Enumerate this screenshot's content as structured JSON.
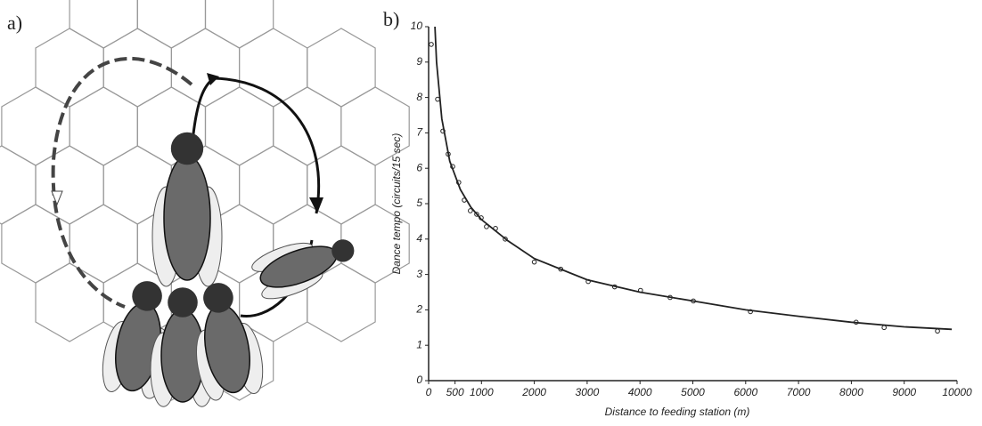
{
  "panel_labels": [
    "a)",
    "b)"
  ],
  "chart_data": {
    "type": "scatter",
    "xlabel": "Distance to feeding station (m)",
    "ylabel": "Dance tempo (circuits/15 sec)",
    "xlim": [
      0,
      10000
    ],
    "ylim": [
      0,
      10
    ],
    "xticks": [
      0,
      500,
      1000,
      2000,
      3000,
      4000,
      5000,
      6000,
      7000,
      8000,
      9000,
      10000
    ],
    "yticks": [
      0,
      1,
      2,
      3,
      4,
      5,
      6,
      7,
      8,
      9,
      10
    ],
    "color": "#222222",
    "series": [
      {
        "kind": "points",
        "x": [
          50,
          170,
          270,
          370,
          455,
          570,
          675,
          790,
          910,
          995,
          1095,
          1265,
          1450,
          2000,
          2500,
          3020,
          3520,
          4010,
          4570,
          5010,
          6090,
          8090,
          8620,
          9630
        ],
        "values": [
          9.5,
          7.95,
          7.05,
          6.4,
          6.05,
          5.6,
          5.1,
          4.8,
          4.7,
          4.6,
          4.35,
          4.3,
          4.0,
          3.35,
          3.15,
          2.8,
          2.65,
          2.55,
          2.35,
          2.25,
          1.95,
          1.65,
          1.5,
          1.4
        ]
      },
      {
        "kind": "curve",
        "x": [
          120,
          150,
          250,
          400,
          600,
          800,
          1000,
          1500,
          2000,
          3000,
          4000,
          5000,
          6000,
          7000,
          8000,
          9000,
          9900
        ],
        "values": [
          10,
          9.0,
          7.4,
          6.2,
          5.4,
          4.9,
          4.55,
          3.95,
          3.45,
          2.85,
          2.5,
          2.25,
          2.0,
          1.82,
          1.65,
          1.52,
          1.45
        ]
      }
    ]
  }
}
